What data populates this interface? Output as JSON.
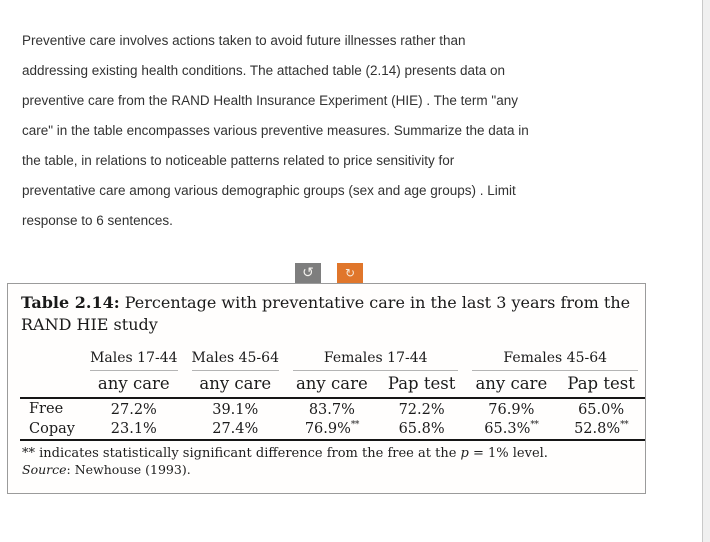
{
  "prompt": {
    "lines": [
      "Preventive care involves actions taken to avoid future illnesses rather than",
      "addressing existing health conditions. The attached table (2.14) presents data on",
      "preventive care from the RAND Health Insurance Experiment (HIE) . The term \"any",
      "care\" in the table encompasses various preventive measures. Summarize the data in",
      "the table, in relations to noticeable patterns related to price sensitivity for",
      "preventative care among various demographic groups (sex and age groups) . Limit",
      "response to 6 sentences."
    ]
  },
  "toolbar": {
    "undo_icon": "↺",
    "redo_icon": "↻",
    "undo_bg": "#7e7e7e",
    "redo_bg": "#e0762b"
  },
  "table": {
    "title_label": "Table 2.14:",
    "title_line1": " Percentage with preventative care in the last 3 years from the",
    "title_line2": "RAND HIE study",
    "groups": [
      "Males 17-44",
      "Males 45-64",
      "Females 17-44",
      "Females 45-64"
    ],
    "subheaders": [
      "any care",
      "any care",
      "any care",
      "Pap test",
      "any care",
      "Pap test"
    ],
    "rows": [
      {
        "label": "Free",
        "cells": [
          {
            "v": "27.2%",
            "m": ""
          },
          {
            "v": "39.1%",
            "m": ""
          },
          {
            "v": "83.7%",
            "m": ""
          },
          {
            "v": "72.2%",
            "m": ""
          },
          {
            "v": "76.9%",
            "m": ""
          },
          {
            "v": "65.0%",
            "m": ""
          }
        ]
      },
      {
        "label": "Copay",
        "cells": [
          {
            "v": "23.1%",
            "m": ""
          },
          {
            "v": "27.4%",
            "m": ""
          },
          {
            "v": "76.9%",
            "m": "**"
          },
          {
            "v": "65.8%",
            "m": ""
          },
          {
            "v": "65.3%",
            "m": "**"
          },
          {
            "v": "52.8%",
            "m": "**"
          }
        ]
      }
    ],
    "footnote": {
      "pre": "** indicates statistically significant difference from the free at the ",
      "var": "p",
      "post": " = 1% level."
    },
    "source": {
      "label": "Source",
      "rest": ": Newhouse (1993)."
    }
  }
}
